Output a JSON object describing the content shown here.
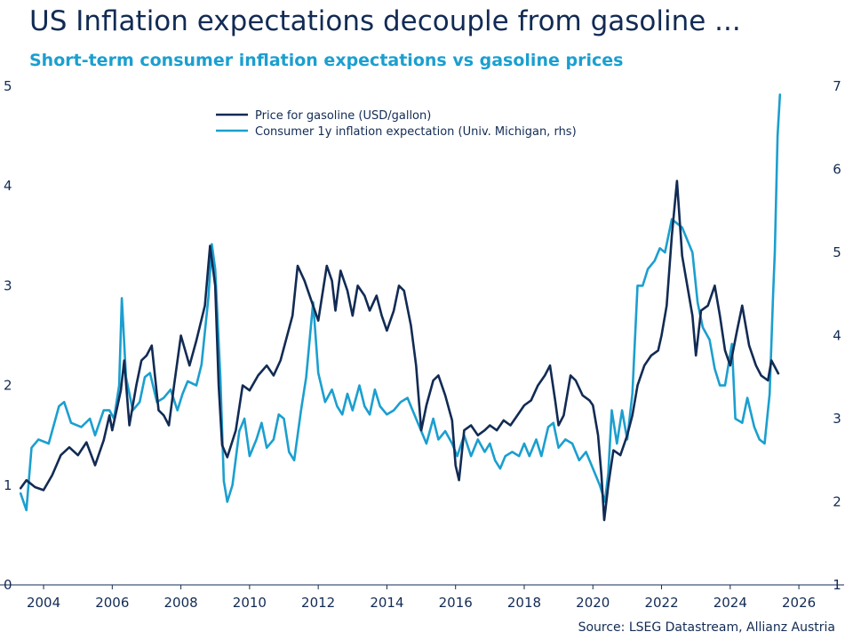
{
  "title": "US Inflation expectations decouple from gasoline ...",
  "subtitle": "Short-term consumer inflation expectations vs gasoline prices",
  "source": "Source: LSEG Datastream, Allianz Austria",
  "colors": {
    "gasoline": "#122b54",
    "expectation": "#1b9fcf",
    "text": "#122b54"
  },
  "chart_data": {
    "type": "line",
    "legend_position": "top-center",
    "grid": false,
    "x_range": [
      2003.3,
      2026.8
    ],
    "x_ticks": [
      "2004",
      "2006",
      "2008",
      "2010",
      "2012",
      "2014",
      "2016",
      "2018",
      "2020",
      "2022",
      "2024",
      "2026"
    ],
    "y_left_range": [
      0,
      5
    ],
    "y_left_ticks": [
      "0",
      "1",
      "2",
      "3",
      "4",
      "5"
    ],
    "y_right_range": [
      1,
      7
    ],
    "y_right_ticks": [
      "1",
      "2",
      "3",
      "4",
      "5",
      "6",
      "7"
    ],
    "series": [
      {
        "name": "Price for gasoline (USD/gallon)",
        "axis": "left",
        "points": [
          [
            2003.33,
            0.97
          ],
          [
            2003.5,
            1.05
          ],
          [
            2003.75,
            0.98
          ],
          [
            2004.0,
            0.95
          ],
          [
            2004.25,
            1.1
          ],
          [
            2004.5,
            1.3
          ],
          [
            2004.75,
            1.38
          ],
          [
            2005.0,
            1.3
          ],
          [
            2005.25,
            1.43
          ],
          [
            2005.5,
            1.2
          ],
          [
            2005.75,
            1.45
          ],
          [
            2005.92,
            1.7
          ],
          [
            2006.0,
            1.55
          ],
          [
            2006.25,
            1.95
          ],
          [
            2006.35,
            2.25
          ],
          [
            2006.5,
            1.6
          ],
          [
            2006.7,
            2.0
          ],
          [
            2006.85,
            2.25
          ],
          [
            2007.0,
            2.3
          ],
          [
            2007.15,
            2.4
          ],
          [
            2007.35,
            1.75
          ],
          [
            2007.5,
            1.7
          ],
          [
            2007.65,
            1.6
          ],
          [
            2007.8,
            2.0
          ],
          [
            2008.0,
            2.5
          ],
          [
            2008.25,
            2.2
          ],
          [
            2008.45,
            2.45
          ],
          [
            2008.7,
            2.8
          ],
          [
            2008.85,
            3.4
          ],
          [
            2009.0,
            3.0
          ],
          [
            2009.1,
            2.0
          ],
          [
            2009.2,
            1.4
          ],
          [
            2009.35,
            1.28
          ],
          [
            2009.6,
            1.55
          ],
          [
            2009.8,
            2.0
          ],
          [
            2010.0,
            1.95
          ],
          [
            2010.25,
            2.1
          ],
          [
            2010.5,
            2.2
          ],
          [
            2010.7,
            2.1
          ],
          [
            2010.9,
            2.25
          ],
          [
            2011.25,
            2.7
          ],
          [
            2011.4,
            3.2
          ],
          [
            2011.6,
            3.05
          ],
          [
            2011.8,
            2.85
          ],
          [
            2012.0,
            2.65
          ],
          [
            2012.25,
            3.2
          ],
          [
            2012.4,
            3.05
          ],
          [
            2012.5,
            2.75
          ],
          [
            2012.65,
            3.15
          ],
          [
            2012.85,
            2.95
          ],
          [
            2013.0,
            2.7
          ],
          [
            2013.15,
            3.0
          ],
          [
            2013.35,
            2.9
          ],
          [
            2013.5,
            2.75
          ],
          [
            2013.7,
            2.9
          ],
          [
            2013.85,
            2.7
          ],
          [
            2014.0,
            2.55
          ],
          [
            2014.2,
            2.75
          ],
          [
            2014.35,
            3.0
          ],
          [
            2014.5,
            2.95
          ],
          [
            2014.7,
            2.6
          ],
          [
            2014.85,
            2.2
          ],
          [
            2015.0,
            1.55
          ],
          [
            2015.15,
            1.8
          ],
          [
            2015.35,
            2.05
          ],
          [
            2015.5,
            2.1
          ],
          [
            2015.7,
            1.9
          ],
          [
            2015.9,
            1.65
          ],
          [
            2016.0,
            1.2
          ],
          [
            2016.1,
            1.05
          ],
          [
            2016.25,
            1.55
          ],
          [
            2016.45,
            1.6
          ],
          [
            2016.65,
            1.5
          ],
          [
            2016.85,
            1.55
          ],
          [
            2017.0,
            1.6
          ],
          [
            2017.2,
            1.55
          ],
          [
            2017.4,
            1.65
          ],
          [
            2017.6,
            1.6
          ],
          [
            2017.8,
            1.7
          ],
          [
            2018.0,
            1.8
          ],
          [
            2018.2,
            1.85
          ],
          [
            2018.4,
            2.0
          ],
          [
            2018.6,
            2.1
          ],
          [
            2018.75,
            2.2
          ],
          [
            2018.9,
            1.85
          ],
          [
            2019.0,
            1.6
          ],
          [
            2019.15,
            1.7
          ],
          [
            2019.35,
            2.1
          ],
          [
            2019.5,
            2.05
          ],
          [
            2019.7,
            1.9
          ],
          [
            2019.9,
            1.85
          ],
          [
            2020.0,
            1.8
          ],
          [
            2020.15,
            1.5
          ],
          [
            2020.25,
            1.1
          ],
          [
            2020.33,
            0.65
          ],
          [
            2020.45,
            1.0
          ],
          [
            2020.6,
            1.35
          ],
          [
            2020.8,
            1.3
          ],
          [
            2021.0,
            1.5
          ],
          [
            2021.15,
            1.7
          ],
          [
            2021.3,
            2.0
          ],
          [
            2021.5,
            2.2
          ],
          [
            2021.7,
            2.3
          ],
          [
            2021.9,
            2.35
          ],
          [
            2022.0,
            2.5
          ],
          [
            2022.15,
            2.8
          ],
          [
            2022.3,
            3.5
          ],
          [
            2022.45,
            4.05
          ],
          [
            2022.6,
            3.3
          ],
          [
            2022.75,
            3.0
          ],
          [
            2022.9,
            2.7
          ],
          [
            2023.0,
            2.3
          ],
          [
            2023.15,
            2.75
          ],
          [
            2023.35,
            2.8
          ],
          [
            2023.55,
            3.0
          ],
          [
            2023.7,
            2.7
          ],
          [
            2023.85,
            2.35
          ],
          [
            2024.0,
            2.2
          ],
          [
            2024.2,
            2.55
          ],
          [
            2024.35,
            2.8
          ],
          [
            2024.55,
            2.4
          ],
          [
            2024.75,
            2.2
          ],
          [
            2024.9,
            2.1
          ],
          [
            2025.1,
            2.05
          ],
          [
            2025.2,
            2.25
          ],
          [
            2025.4,
            2.12
          ]
        ]
      },
      {
        "name": "Consumer 1y  inflation expectation (Univ. Michigan, rhs)",
        "axis": "right",
        "points": [
          [
            2003.33,
            2.1
          ],
          [
            2003.5,
            1.9
          ],
          [
            2003.65,
            2.65
          ],
          [
            2003.85,
            2.75
          ],
          [
            2004.15,
            2.7
          ],
          [
            2004.45,
            3.15
          ],
          [
            2004.6,
            3.2
          ],
          [
            2004.8,
            2.95
          ],
          [
            2005.1,
            2.9
          ],
          [
            2005.35,
            3.0
          ],
          [
            2005.5,
            2.8
          ],
          [
            2005.75,
            3.1
          ],
          [
            2005.92,
            3.1
          ],
          [
            2006.05,
            3.0
          ],
          [
            2006.2,
            3.4
          ],
          [
            2006.28,
            4.45
          ],
          [
            2006.4,
            3.5
          ],
          [
            2006.6,
            3.1
          ],
          [
            2006.8,
            3.2
          ],
          [
            2006.95,
            3.5
          ],
          [
            2007.1,
            3.55
          ],
          [
            2007.3,
            3.2
          ],
          [
            2007.5,
            3.25
          ],
          [
            2007.7,
            3.35
          ],
          [
            2007.9,
            3.1
          ],
          [
            2008.05,
            3.3
          ],
          [
            2008.2,
            3.45
          ],
          [
            2008.45,
            3.4
          ],
          [
            2008.6,
            3.65
          ],
          [
            2008.8,
            4.45
          ],
          [
            2008.9,
            5.1
          ],
          [
            2009.0,
            4.8
          ],
          [
            2009.15,
            3.5
          ],
          [
            2009.25,
            2.25
          ],
          [
            2009.35,
            2.0
          ],
          [
            2009.5,
            2.2
          ],
          [
            2009.7,
            2.85
          ],
          [
            2009.85,
            3.0
          ],
          [
            2010.0,
            2.55
          ],
          [
            2010.2,
            2.75
          ],
          [
            2010.35,
            2.95
          ],
          [
            2010.5,
            2.65
          ],
          [
            2010.7,
            2.75
          ],
          [
            2010.85,
            3.05
          ],
          [
            2011.0,
            3.0
          ],
          [
            2011.15,
            2.6
          ],
          [
            2011.3,
            2.5
          ],
          [
            2011.5,
            3.1
          ],
          [
            2011.65,
            3.5
          ],
          [
            2011.85,
            4.4
          ],
          [
            2012.0,
            3.55
          ],
          [
            2012.2,
            3.2
          ],
          [
            2012.4,
            3.35
          ],
          [
            2012.55,
            3.15
          ],
          [
            2012.7,
            3.05
          ],
          [
            2012.85,
            3.3
          ],
          [
            2013.0,
            3.1
          ],
          [
            2013.2,
            3.4
          ],
          [
            2013.35,
            3.15
          ],
          [
            2013.5,
            3.05
          ],
          [
            2013.65,
            3.35
          ],
          [
            2013.8,
            3.15
          ],
          [
            2014.0,
            3.05
          ],
          [
            2014.2,
            3.1
          ],
          [
            2014.4,
            3.2
          ],
          [
            2014.6,
            3.25
          ],
          [
            2014.8,
            3.05
          ],
          [
            2015.0,
            2.85
          ],
          [
            2015.15,
            2.7
          ],
          [
            2015.35,
            3.0
          ],
          [
            2015.5,
            2.75
          ],
          [
            2015.7,
            2.85
          ],
          [
            2015.9,
            2.7
          ],
          [
            2016.05,
            2.55
          ],
          [
            2016.25,
            2.8
          ],
          [
            2016.45,
            2.55
          ],
          [
            2016.65,
            2.75
          ],
          [
            2016.85,
            2.6
          ],
          [
            2017.0,
            2.7
          ],
          [
            2017.15,
            2.5
          ],
          [
            2017.3,
            2.4
          ],
          [
            2017.45,
            2.55
          ],
          [
            2017.65,
            2.6
          ],
          [
            2017.85,
            2.55
          ],
          [
            2018.0,
            2.7
          ],
          [
            2018.15,
            2.55
          ],
          [
            2018.35,
            2.75
          ],
          [
            2018.5,
            2.55
          ],
          [
            2018.7,
            2.9
          ],
          [
            2018.85,
            2.95
          ],
          [
            2019.0,
            2.65
          ],
          [
            2019.2,
            2.75
          ],
          [
            2019.4,
            2.7
          ],
          [
            2019.6,
            2.5
          ],
          [
            2019.8,
            2.6
          ],
          [
            2020.0,
            2.4
          ],
          [
            2020.2,
            2.2
          ],
          [
            2020.35,
            2.0
          ],
          [
            2020.45,
            2.35
          ],
          [
            2020.55,
            3.1
          ],
          [
            2020.7,
            2.7
          ],
          [
            2020.85,
            3.1
          ],
          [
            2021.0,
            2.75
          ],
          [
            2021.15,
            3.3
          ],
          [
            2021.3,
            4.6
          ],
          [
            2021.45,
            4.6
          ],
          [
            2021.6,
            4.8
          ],
          [
            2021.8,
            4.9
          ],
          [
            2021.95,
            5.05
          ],
          [
            2022.1,
            5.0
          ],
          [
            2022.3,
            5.4
          ],
          [
            2022.45,
            5.35
          ],
          [
            2022.6,
            5.3
          ],
          [
            2022.75,
            5.15
          ],
          [
            2022.9,
            5.0
          ],
          [
            2023.05,
            4.4
          ],
          [
            2023.2,
            4.1
          ],
          [
            2023.4,
            3.95
          ],
          [
            2023.55,
            3.6
          ],
          [
            2023.7,
            3.4
          ],
          [
            2023.85,
            3.4
          ],
          [
            2024.05,
            3.9
          ],
          [
            2024.15,
            3.0
          ],
          [
            2024.35,
            2.95
          ],
          [
            2024.5,
            3.25
          ],
          [
            2024.7,
            2.9
          ],
          [
            2024.85,
            2.75
          ],
          [
            2025.0,
            2.7
          ],
          [
            2025.15,
            3.3
          ],
          [
            2025.25,
            4.5
          ],
          [
            2025.3,
            5.0
          ],
          [
            2025.38,
            6.4
          ],
          [
            2025.45,
            6.9
          ]
        ]
      }
    ]
  }
}
